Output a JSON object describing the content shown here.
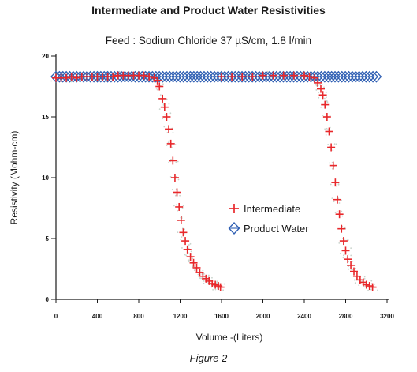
{
  "chart_data": {
    "type": "scatter",
    "title": "Intermediate and Product Water Resistivities",
    "subtitle": "Feed : Sodium Chloride 37 µS/cm, 1.8 l/min",
    "xlabel": "Volume -(Liters)",
    "ylabel": "Resistivity (Mohm-cm)",
    "xlim": [
      0,
      3200
    ],
    "ylim": [
      0,
      20
    ],
    "x_ticks": [
      "0",
      "400",
      "800",
      "1200",
      "1600",
      "2000",
      "2400",
      "2800",
      "3200"
    ],
    "y_ticks": [
      "0",
      "5",
      "10",
      "15",
      "20"
    ],
    "legend_position": "center-right",
    "grid": false,
    "series": [
      {
        "name": "Intermediate",
        "marker": "plus",
        "color": "#e8282b",
        "points": [
          [
            0,
            18.2
          ],
          [
            50,
            18.2
          ],
          [
            100,
            18.2
          ],
          [
            150,
            18.3
          ],
          [
            200,
            18.2
          ],
          [
            250,
            18.3
          ],
          [
            300,
            18.3
          ],
          [
            350,
            18.3
          ],
          [
            400,
            18.3
          ],
          [
            450,
            18.3
          ],
          [
            500,
            18.3
          ],
          [
            550,
            18.3
          ],
          [
            600,
            18.4
          ],
          [
            650,
            18.4
          ],
          [
            700,
            18.4
          ],
          [
            750,
            18.4
          ],
          [
            800,
            18.4
          ],
          [
            850,
            18.4
          ],
          [
            900,
            18.3
          ],
          [
            950,
            18.2
          ],
          [
            980,
            18.0
          ],
          [
            1000,
            17.5
          ],
          [
            1030,
            16.5
          ],
          [
            1050,
            15.8
          ],
          [
            1070,
            15.0
          ],
          [
            1090,
            14.0
          ],
          [
            1110,
            12.8
          ],
          [
            1130,
            11.4
          ],
          [
            1150,
            10.0
          ],
          [
            1170,
            8.8
          ],
          [
            1190,
            7.6
          ],
          [
            1210,
            6.5
          ],
          [
            1230,
            5.5
          ],
          [
            1250,
            4.8
          ],
          [
            1270,
            4.1
          ],
          [
            1300,
            3.5
          ],
          [
            1330,
            3.0
          ],
          [
            1360,
            2.6
          ],
          [
            1390,
            2.2
          ],
          [
            1420,
            1.9
          ],
          [
            1450,
            1.7
          ],
          [
            1480,
            1.5
          ],
          [
            1510,
            1.3
          ],
          [
            1540,
            1.2
          ],
          [
            1570,
            1.1
          ],
          [
            1590,
            1.0
          ],
          [
            1600,
            18.3
          ],
          [
            1700,
            18.3
          ],
          [
            1800,
            18.3
          ],
          [
            1900,
            18.3
          ],
          [
            2000,
            18.4
          ],
          [
            2100,
            18.4
          ],
          [
            2200,
            18.4
          ],
          [
            2300,
            18.4
          ],
          [
            2400,
            18.4
          ],
          [
            2450,
            18.3
          ],
          [
            2500,
            18.2
          ],
          [
            2530,
            17.8
          ],
          [
            2560,
            17.3
          ],
          [
            2580,
            16.8
          ],
          [
            2600,
            16.0
          ],
          [
            2620,
            15.0
          ],
          [
            2640,
            13.8
          ],
          [
            2660,
            12.5
          ],
          [
            2680,
            11.0
          ],
          [
            2700,
            9.6
          ],
          [
            2720,
            8.2
          ],
          [
            2740,
            7.0
          ],
          [
            2760,
            5.8
          ],
          [
            2780,
            4.8
          ],
          [
            2800,
            4.0
          ],
          [
            2820,
            3.3
          ],
          [
            2850,
            2.8
          ],
          [
            2880,
            2.3
          ],
          [
            2910,
            1.9
          ],
          [
            2940,
            1.6
          ],
          [
            2970,
            1.4
          ],
          [
            3000,
            1.2
          ],
          [
            3030,
            1.1
          ],
          [
            3060,
            1.0
          ]
        ]
      },
      {
        "name": "Product Water",
        "marker": "diamond",
        "color": "#2f5fb3",
        "x_range": [
          0,
          3100
        ],
        "y": 18.3
      }
    ]
  },
  "figure_caption": "Figure 2",
  "colors": {
    "intermediate": "#e8282b",
    "product_water": "#2f5fb3",
    "axis": "#1a1a1a"
  }
}
